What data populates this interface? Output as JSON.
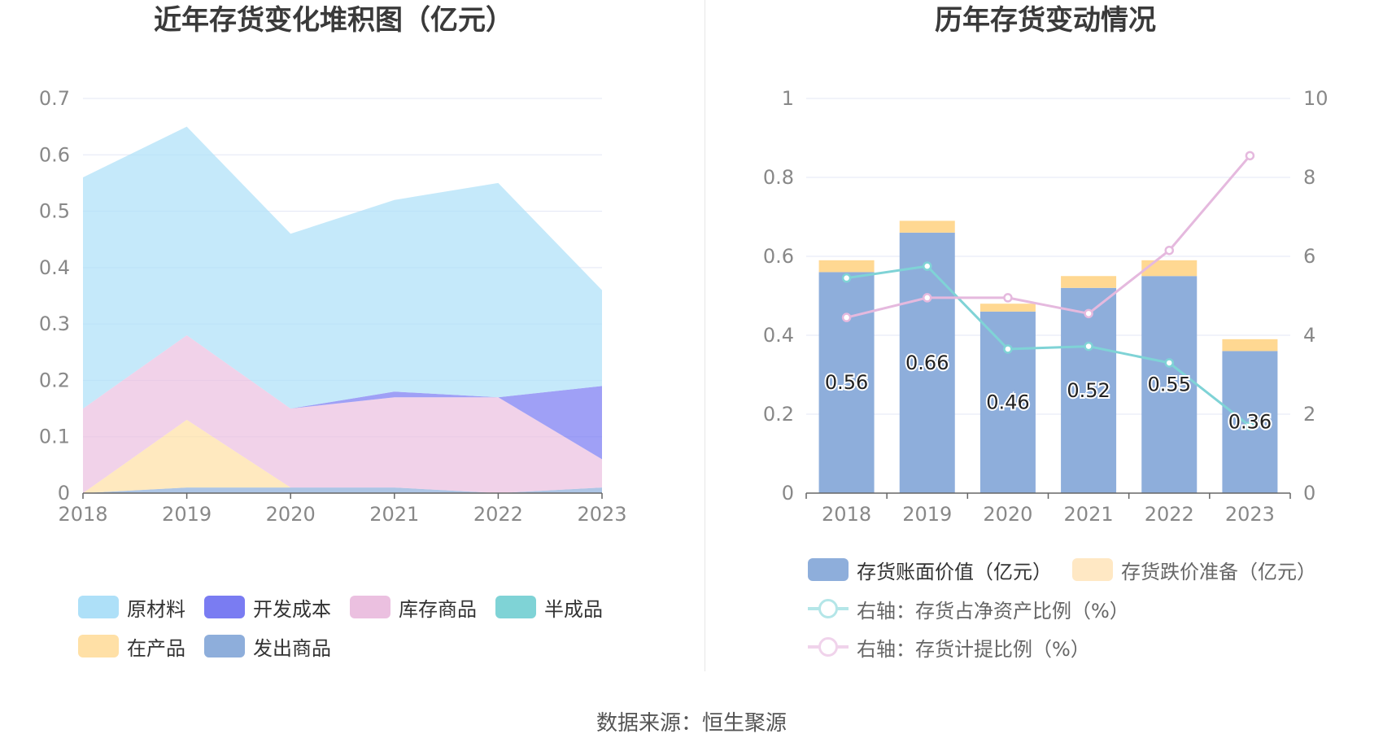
{
  "source_text": "数据来源：恒生聚源",
  "chart_data": [
    {
      "type": "area",
      "title": "近年存货变化堆积图（亿元）",
      "stacked": true,
      "categories": [
        "2018",
        "2019",
        "2020",
        "2021",
        "2022",
        "2023"
      ],
      "ylim": [
        0,
        0.7
      ],
      "yticks": [
        "0",
        "0.1",
        "0.2",
        "0.3",
        "0.4",
        "0.5",
        "0.6",
        "0.7"
      ],
      "grid": true,
      "legend_position": "bottom",
      "series": [
        {
          "name": "发出商品",
          "color": "#8eaedb",
          "values": [
            0,
            0.01,
            0.01,
            0.01,
            0,
            0.01
          ]
        },
        {
          "name": "半成品",
          "color": "#7fd3d6",
          "values": [
            0,
            0,
            0,
            0,
            0,
            0
          ]
        },
        {
          "name": "在产品",
          "color": "#ffe0a6",
          "values": [
            0,
            0.12,
            0,
            0,
            0,
            0
          ]
        },
        {
          "name": "库存商品",
          "color": "#ebc0e0",
          "values": [
            0.15,
            0.15,
            0.14,
            0.16,
            0.17,
            0.05
          ]
        },
        {
          "name": "开发成本",
          "color": "#7a7cf2",
          "values": [
            0,
            0,
            0,
            0.01,
            0,
            0.13
          ]
        },
        {
          "name": "原材料",
          "color": "#aee0f8",
          "values": [
            0.41,
            0.37,
            0.31,
            0.34,
            0.38,
            0.17
          ]
        }
      ],
      "legend_order": [
        "原材料",
        "开发成本",
        "库存商品",
        "半成品",
        "在产品",
        "发出商品"
      ]
    },
    {
      "type": "bar+line",
      "title": "历年存货变动情况",
      "categories": [
        "2018",
        "2019",
        "2020",
        "2021",
        "2022",
        "2023"
      ],
      "left_axis": {
        "ylim": [
          0,
          1
        ],
        "ticks": [
          "0",
          "0.2",
          "0.4",
          "0.6",
          "0.8",
          "1"
        ]
      },
      "right_axis": {
        "ylim": [
          0,
          10
        ],
        "ticks": [
          "0",
          "2",
          "4",
          "6",
          "8",
          "10"
        ]
      },
      "grid": true,
      "legend_position": "bottom",
      "bars": [
        {
          "name": "存货账面价值（亿元）",
          "color": "#8eaedb",
          "values": [
            0.56,
            0.66,
            0.46,
            0.52,
            0.55,
            0.36
          ],
          "labels": [
            "0.56",
            "0.66",
            "0.46",
            "0.52",
            "0.55",
            "0.36"
          ]
        },
        {
          "name": "存货跌价准备（亿元）",
          "color": "#ffd892",
          "values": [
            0.03,
            0.03,
            0.02,
            0.03,
            0.04,
            0.03
          ]
        }
      ],
      "lines": [
        {
          "name": "右轴：存货占净资产比例（%）",
          "color": "#7fd3d6",
          "axis": "right",
          "values": [
            5.45,
            5.75,
            3.65,
            3.72,
            3.3,
            1.7
          ]
        },
        {
          "name": "右轴：存货计提比例（%）",
          "color": "#e5b9de",
          "axis": "right",
          "values": [
            4.45,
            4.95,
            4.95,
            4.55,
            6.15,
            8.55
          ]
        }
      ]
    }
  ]
}
